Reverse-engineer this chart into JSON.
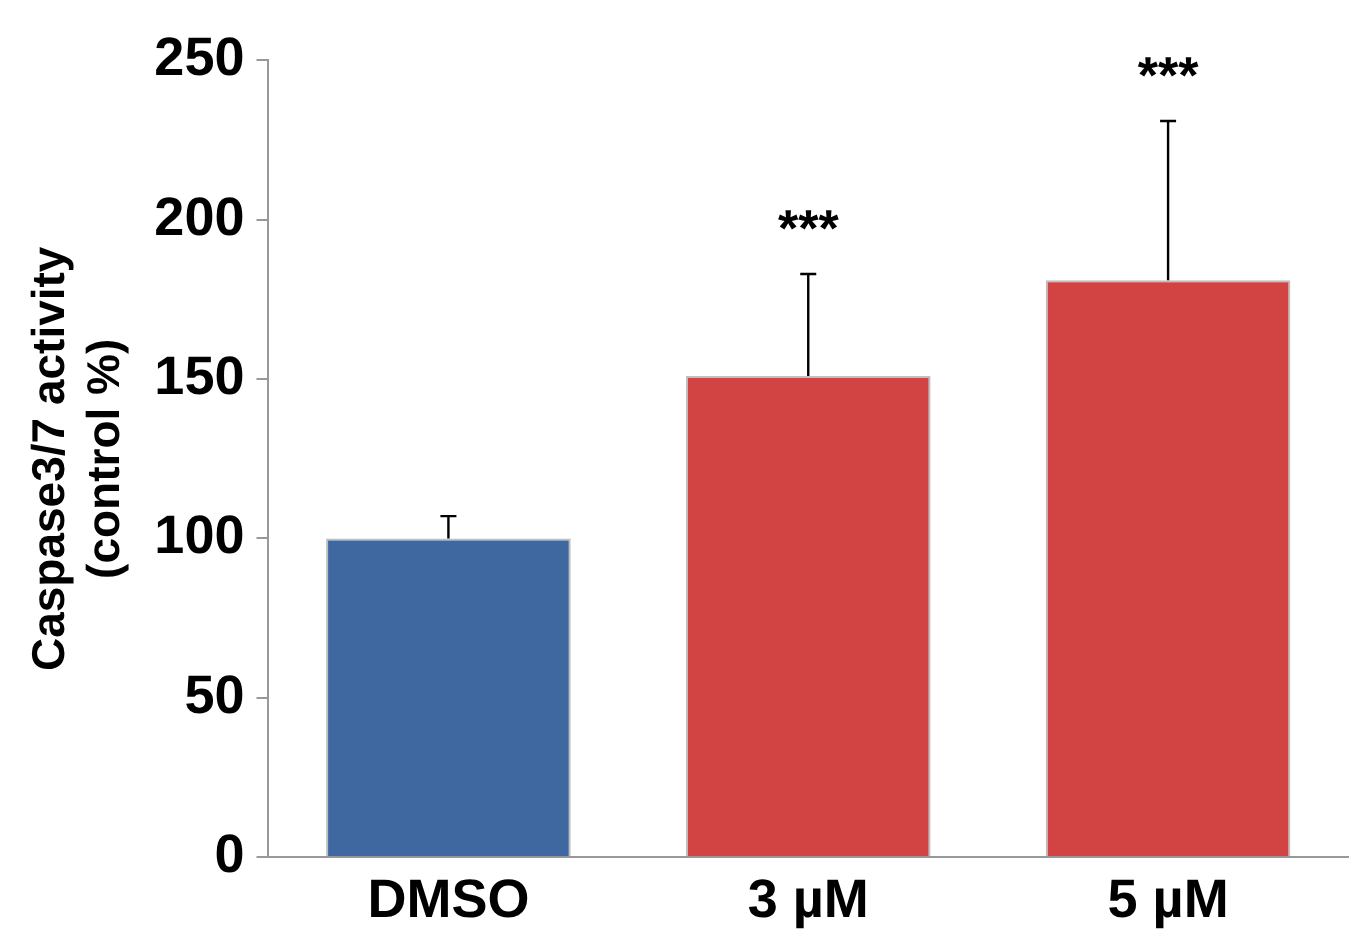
{
  "chart_data": {
    "type": "bar",
    "ylabel": "Caspase3/7 activity\n(control %)",
    "categories": [
      "DMSO",
      "3 µM",
      "5 µM"
    ],
    "values": [
      100,
      151,
      181
    ],
    "colors": [
      "#3f68a0",
      "#d24444",
      "#d24444"
    ],
    "errors": [
      [
        100,
        107
      ],
      [
        151,
        183
      ],
      [
        181,
        231
      ]
    ],
    "ylim": [
      0,
      250
    ],
    "yticks": [
      0,
      50,
      100,
      150,
      200,
      250
    ],
    "grid": false,
    "annotations": [
      "***",
      "***"
    ]
  }
}
